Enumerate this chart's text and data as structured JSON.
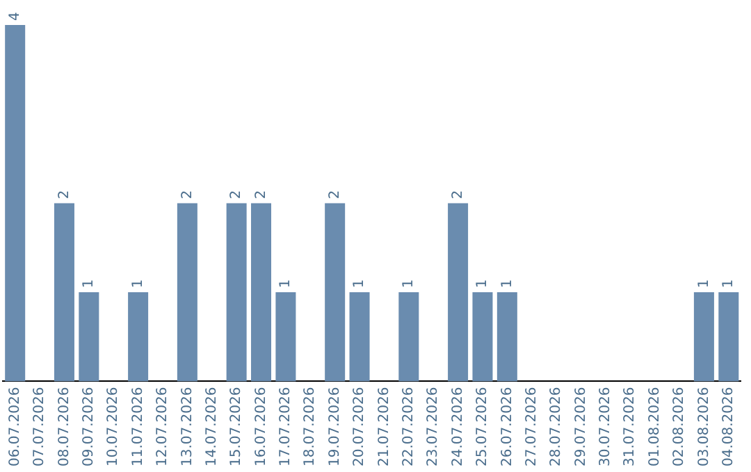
{
  "chart_data": {
    "type": "bar",
    "categories": [
      "06.07.2026",
      "07.07.2026",
      "08.07.2026",
      "09.07.2026",
      "10.07.2026",
      "11.07.2026",
      "12.07.2026",
      "13.07.2026",
      "14.07.2026",
      "15.07.2026",
      "16.07.2026",
      "17.07.2026",
      "18.07.2026",
      "19.07.2026",
      "20.07.2026",
      "21.07.2026",
      "22.07.2026",
      "23.07.2026",
      "24.07.2026",
      "25.07.2026",
      "26.07.2026",
      "27.07.2026",
      "28.07.2026",
      "29.07.2026",
      "30.07.2026",
      "31.07.2026",
      "01.08.2026",
      "02.08.2026",
      "03.08.2026",
      "04.08.2026"
    ],
    "values": [
      4,
      0,
      2,
      1,
      0,
      1,
      0,
      2,
      0,
      2,
      2,
      1,
      0,
      2,
      1,
      0,
      1,
      0,
      2,
      1,
      1,
      0,
      0,
      0,
      0,
      0,
      0,
      0,
      1,
      1
    ],
    "value_labels": [
      "4",
      null,
      "2",
      "1",
      null,
      "1",
      null,
      "2",
      null,
      "2",
      "2",
      "1",
      null,
      "2",
      "1",
      null,
      "1",
      null,
      "2",
      "1",
      "1",
      null,
      null,
      null,
      null,
      null,
      null,
      null,
      "1",
      "1"
    ],
    "color": "#6a8caf",
    "grid": false,
    "legend": false,
    "tick_labels": "x"
  }
}
